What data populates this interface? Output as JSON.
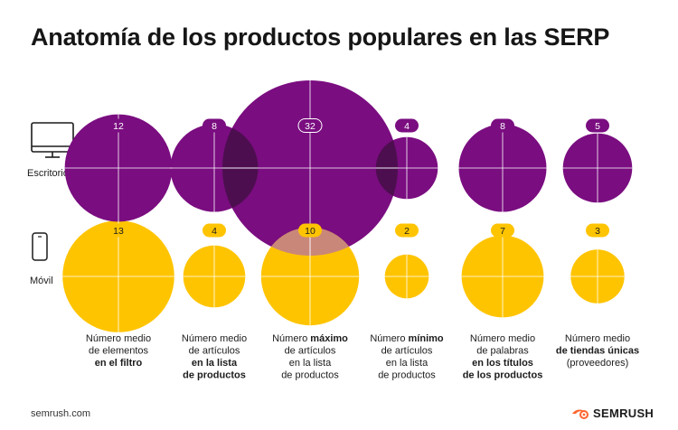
{
  "title": "Anatomía de los productos populares en las SERP",
  "footer": {
    "source": "semrush.com",
    "brand": "SEMRUSH"
  },
  "colors": {
    "desktop": "#7a0d80",
    "mobile": "#ffc400",
    "overlap": "#4d0e4f",
    "text": "#1c1c1c"
  },
  "icons": {
    "desktop": "desktop-monitor-icon",
    "mobile": "smartphone-icon",
    "brand": "semrush-flame-icon"
  },
  "chart_data": {
    "type": "bubble",
    "title": "Anatomía de los productos populares en las SERP",
    "series": [
      {
        "name": "Escritorio",
        "values": [
          12,
          8,
          32,
          4,
          8,
          5
        ]
      },
      {
        "name": "Móvil",
        "values": [
          13,
          4,
          10,
          2,
          7,
          3
        ]
      }
    ],
    "categories": [
      {
        "lines": [
          [
            {
              "t": "Número medio",
              "b": false
            }
          ],
          [
            {
              "t": "de elementos",
              "b": false
            }
          ],
          [
            {
              "t": "en el filtro",
              "b": true
            }
          ]
        ]
      },
      {
        "lines": [
          [
            {
              "t": "Número medio",
              "b": false
            }
          ],
          [
            {
              "t": "de artículos",
              "b": false
            }
          ],
          [
            {
              "t": "en la lista",
              "b": true
            }
          ],
          [
            {
              "t": "de productos",
              "b": true
            }
          ]
        ]
      },
      {
        "lines": [
          [
            {
              "t": "Número ",
              "b": false
            },
            {
              "t": "máximo",
              "b": true
            }
          ],
          [
            {
              "t": "de artículos",
              "b": false
            }
          ],
          [
            {
              "t": "en la lista",
              "b": false
            }
          ],
          [
            {
              "t": "de productos",
              "b": false
            }
          ]
        ]
      },
      {
        "lines": [
          [
            {
              "t": "Número ",
              "b": false
            },
            {
              "t": "mínimo",
              "b": true
            }
          ],
          [
            {
              "t": "de artículos",
              "b": false
            }
          ],
          [
            {
              "t": "en la lista",
              "b": false
            }
          ],
          [
            {
              "t": "de productos",
              "b": false
            }
          ]
        ]
      },
      {
        "lines": [
          [
            {
              "t": "Número medio",
              "b": false
            }
          ],
          [
            {
              "t": "de palabras",
              "b": false
            }
          ],
          [
            {
              "t": "en los títulos",
              "b": true
            }
          ],
          [
            {
              "t": "de los productos",
              "b": true
            }
          ]
        ]
      },
      {
        "lines": [
          [
            {
              "t": "Número medio",
              "b": false
            }
          ],
          [
            {
              "t": "de tiendas únicas",
              "b": true
            }
          ],
          [
            {
              "t": "(proveedores)",
              "b": false
            }
          ]
        ]
      }
    ]
  }
}
